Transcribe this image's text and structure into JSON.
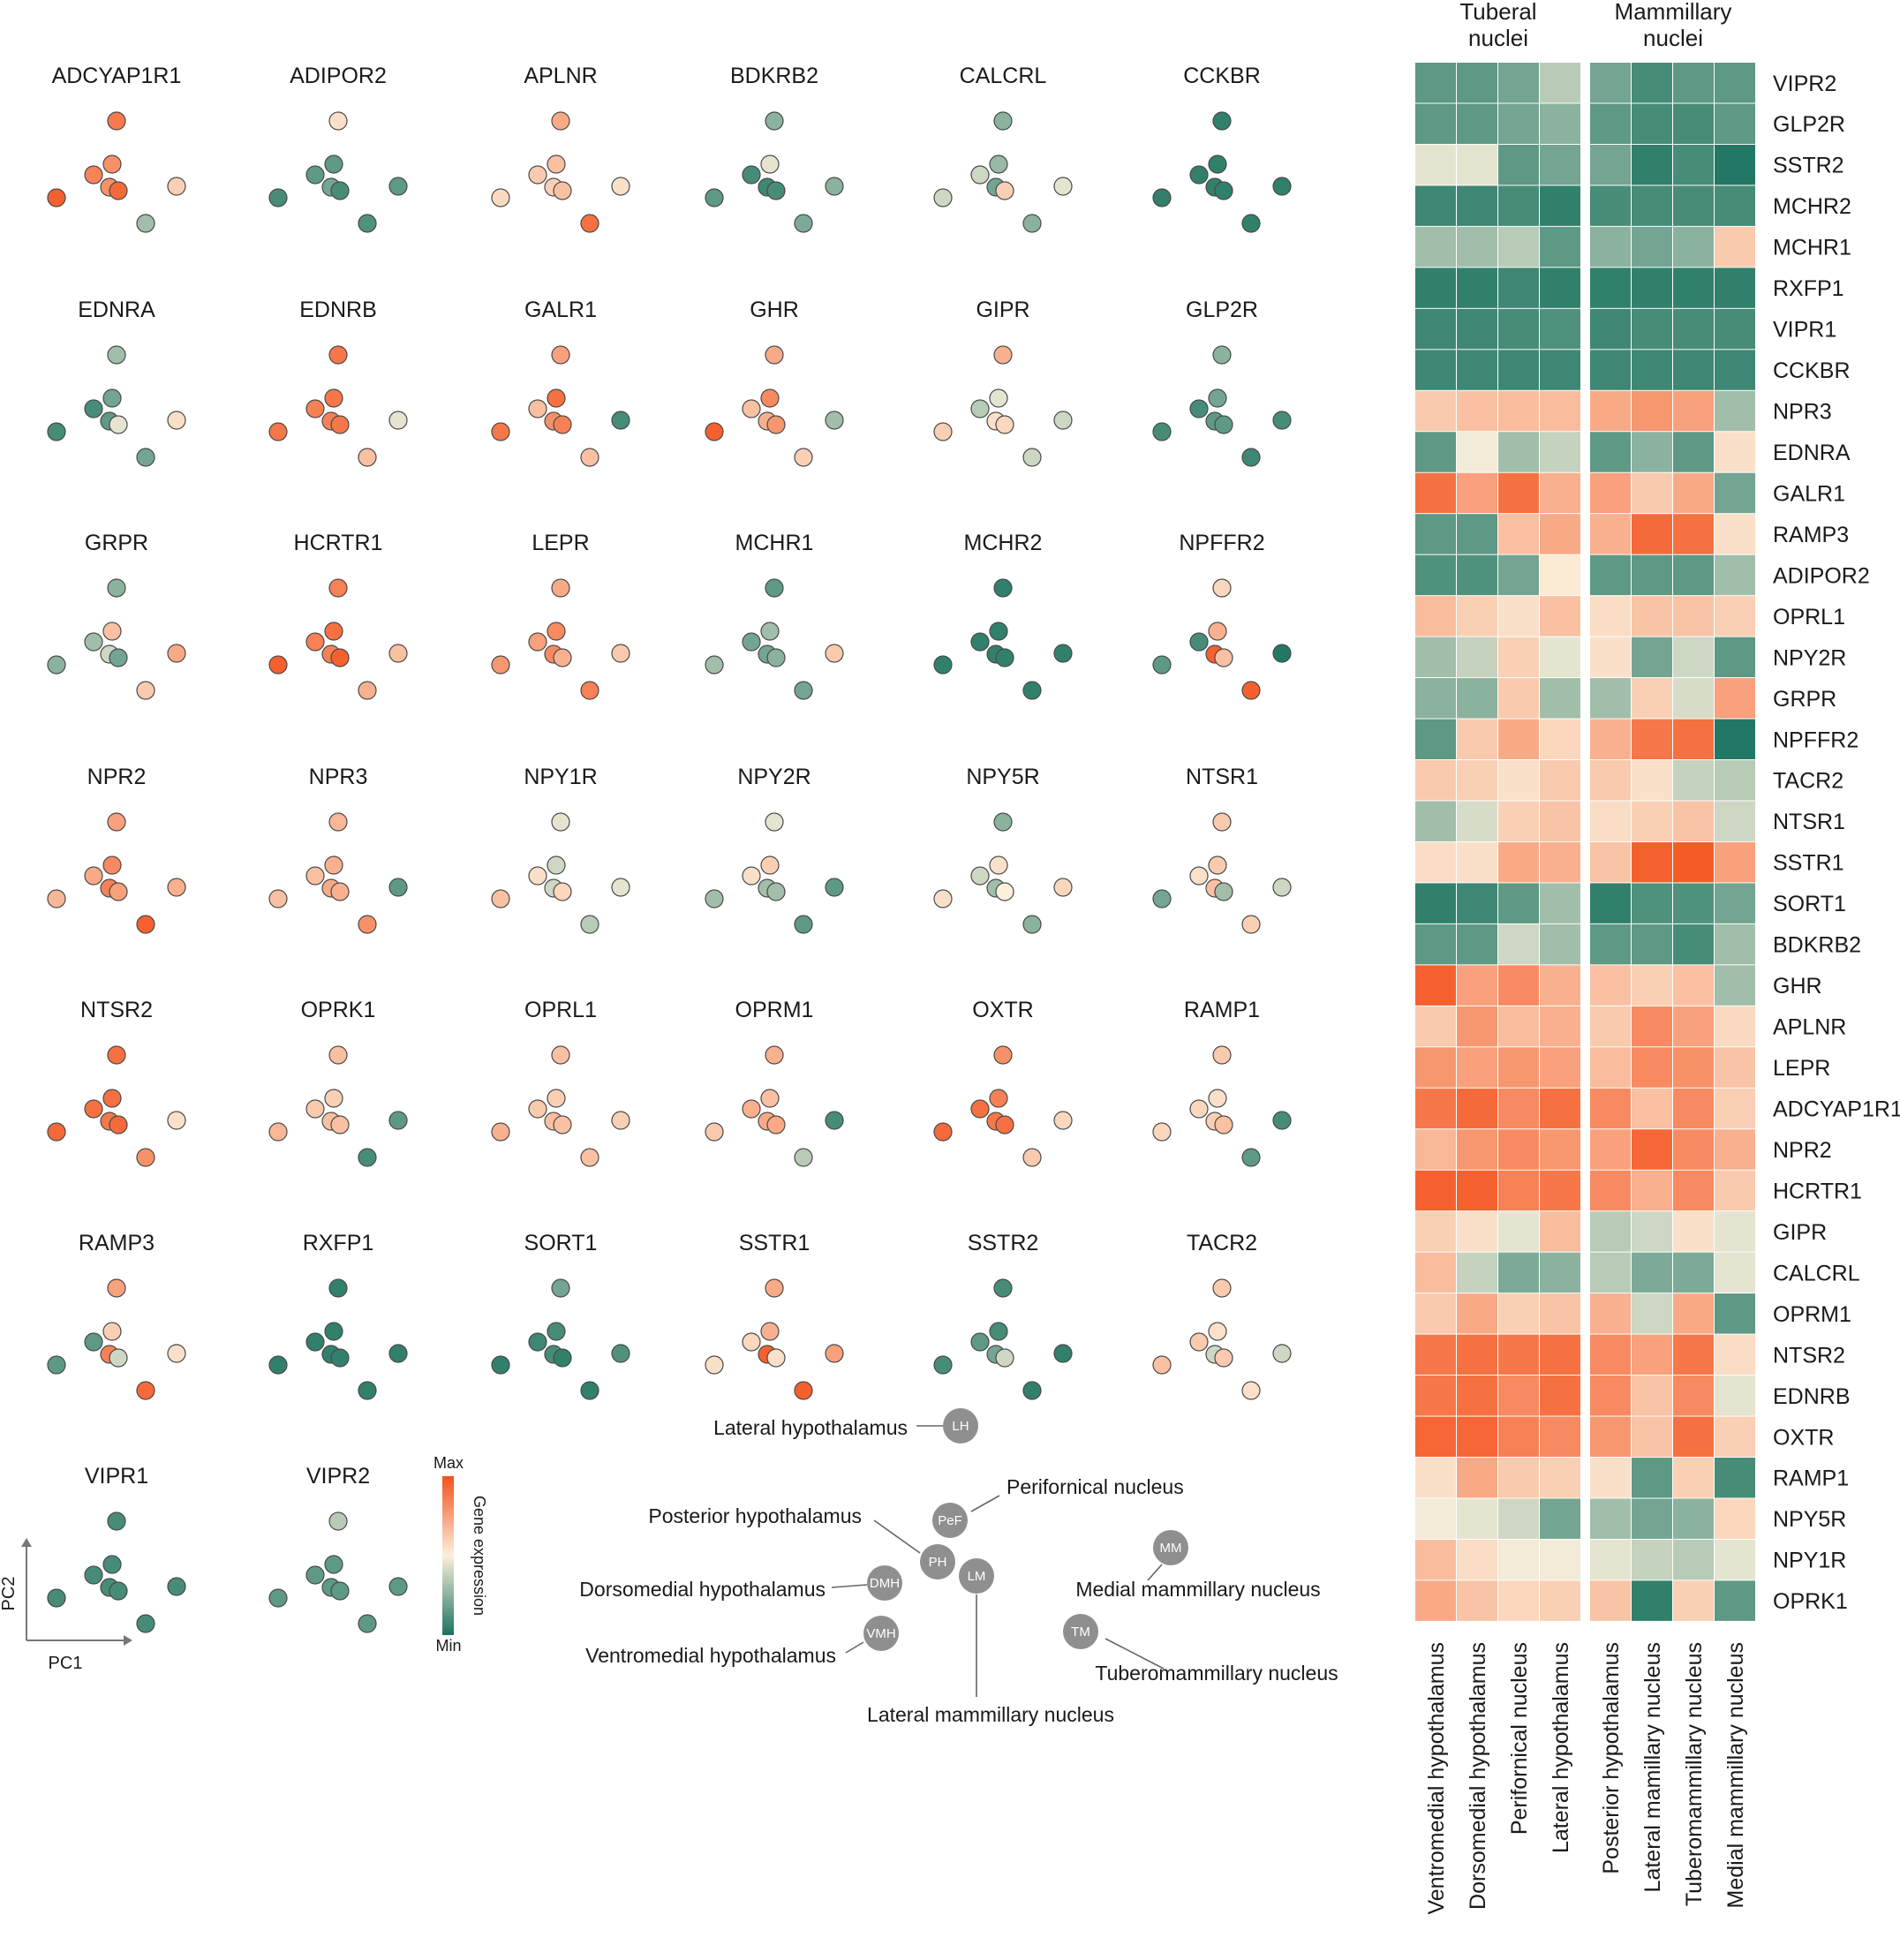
{
  "chart_data": [
    {
      "type": "scatter",
      "description_axes": {
        "xlabel": "PC1",
        "ylabel": "PC2"
      },
      "regions": [
        "LH",
        "PeF",
        "PH",
        "LM",
        "DMH",
        "VMH",
        "MM",
        "TM"
      ],
      "expression_scale": {
        "min_label": "Min",
        "max_label": "Max",
        "title": "Gene expression",
        "range": [
          0,
          1
        ]
      },
      "genes": [
        {
          "name": "ADCYAP1R1",
          "values": [
            0.87,
            0.8,
            0.84,
            0.8,
            0.92,
            0.95,
            0.6,
            0.3
          ]
        },
        {
          "name": "ADIPOR2",
          "values": [
            0.55,
            0.15,
            0.15,
            0.2,
            0.1,
            0.1,
            0.15,
            0.12
          ]
        },
        {
          "name": "APLNR",
          "values": [
            0.72,
            0.65,
            0.62,
            0.6,
            0.65,
            0.57,
            0.55,
            0.9
          ]
        },
        {
          "name": "BDKRB2",
          "values": [
            0.25,
            0.45,
            0.1,
            0.08,
            0.1,
            0.15,
            0.25,
            0.22
          ]
        },
        {
          "name": "CALCRL",
          "values": [
            0.25,
            0.28,
            0.4,
            0.2,
            0.6,
            0.4,
            0.45,
            0.25
          ]
        },
        {
          "name": "CCKBR",
          "values": [
            0.05,
            0.05,
            0.05,
            0.05,
            0.05,
            0.05,
            0.05,
            0.05
          ]
        },
        {
          "name": "EDNRA",
          "values": [
            0.3,
            0.2,
            0.1,
            0.15,
            0.45,
            0.1,
            0.55,
            0.2
          ]
        },
        {
          "name": "EDNRB",
          "values": [
            0.88,
            0.88,
            0.85,
            0.85,
            0.88,
            0.88,
            0.45,
            0.65
          ]
        },
        {
          "name": "GALR1",
          "values": [
            0.75,
            0.9,
            0.65,
            0.8,
            0.85,
            0.88,
            0.1,
            0.65
          ]
        },
        {
          "name": "GHR",
          "values": [
            0.72,
            0.82,
            0.65,
            0.7,
            0.78,
            0.95,
            0.3,
            0.6
          ]
        },
        {
          "name": "GIPR",
          "values": [
            0.7,
            0.45,
            0.35,
            0.55,
            0.58,
            0.6,
            0.4,
            0.4
          ]
        },
        {
          "name": "GLP2R",
          "values": [
            0.25,
            0.2,
            0.1,
            0.15,
            0.15,
            0.1,
            0.1,
            0.08
          ]
        },
        {
          "name": "GRPR",
          "values": [
            0.25,
            0.65,
            0.3,
            0.4,
            0.2,
            0.25,
            0.72,
            0.62
          ]
        },
        {
          "name": "HCRTR1",
          "values": [
            0.85,
            0.9,
            0.85,
            0.85,
            0.95,
            0.95,
            0.65,
            0.7
          ]
        },
        {
          "name": "LEPR",
          "values": [
            0.72,
            0.82,
            0.75,
            0.82,
            0.7,
            0.78,
            0.62,
            0.85
          ]
        },
        {
          "name": "MCHR1",
          "values": [
            0.15,
            0.3,
            0.2,
            0.2,
            0.25,
            0.3,
            0.62,
            0.2
          ]
        },
        {
          "name": "MCHR2",
          "values": [
            0.05,
            0.05,
            0.05,
            0.05,
            0.05,
            0.05,
            0.05,
            0.05
          ]
        },
        {
          "name": "NPFFR2",
          "values": [
            0.58,
            0.7,
            0.1,
            0.95,
            0.65,
            0.15,
            0.02,
            0.95
          ]
        },
        {
          "name": "NPR2",
          "values": [
            0.75,
            0.82,
            0.72,
            0.85,
            0.75,
            0.68,
            0.7,
            0.95
          ]
        },
        {
          "name": "NPR3",
          "values": [
            0.68,
            0.7,
            0.65,
            0.72,
            0.7,
            0.65,
            0.15,
            0.8
          ]
        },
        {
          "name": "NPY1R",
          "values": [
            0.45,
            0.4,
            0.55,
            0.4,
            0.58,
            0.65,
            0.45,
            0.35
          ]
        },
        {
          "name": "NPY2R",
          "values": [
            0.45,
            0.6,
            0.55,
            0.3,
            0.3,
            0.3,
            0.15,
            0.15
          ]
        },
        {
          "name": "NPY5R",
          "values": [
            0.25,
            0.55,
            0.4,
            0.3,
            0.5,
            0.55,
            0.58,
            0.25
          ]
        },
        {
          "name": "NTSR1",
          "values": [
            0.62,
            0.62,
            0.55,
            0.65,
            0.3,
            0.2,
            0.4,
            0.6
          ]
        },
        {
          "name": "NTSR2",
          "values": [
            0.9,
            0.9,
            0.9,
            0.88,
            0.92,
            0.92,
            0.55,
            0.8
          ]
        },
        {
          "name": "OPRK1",
          "values": [
            0.65,
            0.6,
            0.62,
            0.65,
            0.65,
            0.68,
            0.15,
            0.1
          ]
        },
        {
          "name": "OPRL1",
          "values": [
            0.65,
            0.6,
            0.62,
            0.65,
            0.65,
            0.7,
            0.6,
            0.65
          ]
        },
        {
          "name": "OPRM1",
          "values": [
            0.7,
            0.65,
            0.7,
            0.72,
            0.72,
            0.62,
            0.1,
            0.35
          ]
        },
        {
          "name": "OXTR",
          "values": [
            0.8,
            0.85,
            0.9,
            0.88,
            0.9,
            0.92,
            0.58,
            0.62
          ]
        },
        {
          "name": "RAMP1",
          "values": [
            0.62,
            0.55,
            0.58,
            0.6,
            0.65,
            0.58,
            0.1,
            0.15
          ]
        },
        {
          "name": "RAMP3",
          "values": [
            0.75,
            0.6,
            0.15,
            0.85,
            0.4,
            0.15,
            0.55,
            0.92
          ]
        },
        {
          "name": "RXFP1",
          "values": [
            0.05,
            0.05,
            0.05,
            0.05,
            0.05,
            0.05,
            0.05,
            0.05
          ]
        },
        {
          "name": "SORT1",
          "values": [
            0.2,
            0.1,
            0.08,
            0.1,
            0.05,
            0.05,
            0.12,
            0.05
          ]
        },
        {
          "name": "SSTR1",
          "values": [
            0.72,
            0.7,
            0.58,
            0.95,
            0.55,
            0.55,
            0.75,
            0.95
          ]
        },
        {
          "name": "SSTR2",
          "values": [
            0.1,
            0.1,
            0.15,
            0.2,
            0.4,
            0.1,
            0.05,
            0.05
          ]
        },
        {
          "name": "TACR2",
          "values": [
            0.62,
            0.55,
            0.62,
            0.4,
            0.62,
            0.65,
            0.4,
            0.55
          ]
        },
        {
          "name": "VIPR1",
          "values": [
            0.1,
            0.1,
            0.1,
            0.1,
            0.1,
            0.1,
            0.1,
            0.1
          ]
        },
        {
          "name": "VIPR2",
          "values": [
            0.35,
            0.15,
            0.15,
            0.15,
            0.15,
            0.15,
            0.15,
            0.15
          ]
        }
      ]
    },
    {
      "type": "heatmap",
      "groups": [
        {
          "label": "Tuberal\nnuclei",
          "columns": [
            0,
            1,
            2,
            3
          ]
        },
        {
          "label": "Mammillary\nnuclei",
          "columns": [
            4,
            5,
            6,
            7
          ]
        }
      ],
      "columns": [
        "Ventromedial hypothalamus",
        "Dorsomedial hypothalamus",
        "Perifornical nucleus",
        "Lateral hypothalamus",
        "Posterior hypothalamus",
        "Lateral mamillary nucleus",
        "Tuberomammillary nucleus",
        "Medial mammillary nucleus"
      ],
      "rows": [
        "VIPR2",
        "GLP2R",
        "SSTR2",
        "MCHR2",
        "MCHR1",
        "RXFP1",
        "VIPR1",
        "CCKBR",
        "NPR3",
        "EDNRA",
        "GALR1",
        "RAMP3",
        "ADIPOR2",
        "OPRL1",
        "NPY2R",
        "GRPR",
        "NPFFR2",
        "TACR2",
        "NTSR1",
        "SSTR1",
        "SORT1",
        "BDKRB2",
        "GHR",
        "APLNR",
        "LEPR",
        "ADCYAP1R1",
        "NPR2",
        "HCRTR1",
        "GIPR",
        "CALCRL",
        "OPRM1",
        "NTSR2",
        "EDNRB",
        "OXTR",
        "RAMP1",
        "NPY5R",
        "NPY1R",
        "OPRK1"
      ],
      "values": [
        [
          0.15,
          0.15,
          0.2,
          0.35,
          0.2,
          0.1,
          0.15,
          0.15
        ],
        [
          0.15,
          0.15,
          0.2,
          0.25,
          0.15,
          0.1,
          0.1,
          0.15
        ],
        [
          0.45,
          0.45,
          0.15,
          0.2,
          0.2,
          0.05,
          0.1,
          0.02
        ],
        [
          0.08,
          0.08,
          0.1,
          0.05,
          0.1,
          0.1,
          0.1,
          0.1
        ],
        [
          0.3,
          0.3,
          0.35,
          0.15,
          0.25,
          0.2,
          0.25,
          0.62
        ],
        [
          0.05,
          0.05,
          0.08,
          0.05,
          0.05,
          0.05,
          0.05,
          0.05
        ],
        [
          0.08,
          0.08,
          0.1,
          0.12,
          0.08,
          0.1,
          0.1,
          0.1
        ],
        [
          0.08,
          0.08,
          0.08,
          0.08,
          0.08,
          0.08,
          0.08,
          0.08
        ],
        [
          0.62,
          0.65,
          0.66,
          0.66,
          0.72,
          0.78,
          0.75,
          0.3
        ],
        [
          0.15,
          0.48,
          0.3,
          0.38,
          0.15,
          0.25,
          0.15,
          0.55
        ],
        [
          0.9,
          0.75,
          0.9,
          0.7,
          0.75,
          0.62,
          0.72,
          0.2
        ],
        [
          0.15,
          0.15,
          0.65,
          0.72,
          0.7,
          0.92,
          0.9,
          0.55
        ],
        [
          0.12,
          0.12,
          0.2,
          0.52,
          0.15,
          0.15,
          0.15,
          0.3
        ],
        [
          0.66,
          0.6,
          0.55,
          0.65,
          0.56,
          0.64,
          0.64,
          0.6
        ],
        [
          0.3,
          0.38,
          0.6,
          0.45,
          0.55,
          0.2,
          0.4,
          0.15
        ],
        [
          0.25,
          0.25,
          0.62,
          0.3,
          0.3,
          0.6,
          0.42,
          0.75
        ],
        [
          0.15,
          0.62,
          0.72,
          0.58,
          0.7,
          0.88,
          0.9,
          0.02
        ],
        [
          0.62,
          0.6,
          0.55,
          0.62,
          0.62,
          0.55,
          0.38,
          0.35
        ],
        [
          0.3,
          0.42,
          0.6,
          0.64,
          0.56,
          0.6,
          0.64,
          0.4
        ],
        [
          0.56,
          0.55,
          0.72,
          0.7,
          0.64,
          0.95,
          0.97,
          0.75
        ],
        [
          0.05,
          0.08,
          0.15,
          0.3,
          0.05,
          0.12,
          0.12,
          0.2
        ],
        [
          0.15,
          0.15,
          0.4,
          0.3,
          0.15,
          0.15,
          0.1,
          0.3
        ],
        [
          0.95,
          0.75,
          0.82,
          0.7,
          0.65,
          0.6,
          0.65,
          0.3
        ],
        [
          0.62,
          0.78,
          0.66,
          0.7,
          0.62,
          0.82,
          0.75,
          0.57
        ],
        [
          0.78,
          0.75,
          0.78,
          0.75,
          0.66,
          0.82,
          0.8,
          0.64
        ],
        [
          0.88,
          0.92,
          0.82,
          0.9,
          0.82,
          0.65,
          0.82,
          0.6
        ],
        [
          0.68,
          0.78,
          0.82,
          0.78,
          0.75,
          0.93,
          0.82,
          0.7
        ],
        [
          0.95,
          0.95,
          0.85,
          0.88,
          0.82,
          0.7,
          0.82,
          0.62
        ],
        [
          0.6,
          0.55,
          0.45,
          0.66,
          0.35,
          0.4,
          0.55,
          0.45
        ],
        [
          0.66,
          0.38,
          0.22,
          0.25,
          0.35,
          0.22,
          0.22,
          0.45
        ],
        [
          0.62,
          0.72,
          0.6,
          0.64,
          0.7,
          0.4,
          0.72,
          0.15
        ],
        [
          0.88,
          0.9,
          0.88,
          0.9,
          0.82,
          0.75,
          0.88,
          0.56
        ],
        [
          0.88,
          0.9,
          0.82,
          0.9,
          0.82,
          0.64,
          0.82,
          0.45
        ],
        [
          0.93,
          0.93,
          0.85,
          0.82,
          0.78,
          0.64,
          0.9,
          0.6
        ],
        [
          0.55,
          0.72,
          0.62,
          0.6,
          0.55,
          0.15,
          0.6,
          0.1
        ],
        [
          0.48,
          0.45,
          0.4,
          0.2,
          0.3,
          0.2,
          0.25,
          0.58
        ],
        [
          0.66,
          0.56,
          0.48,
          0.48,
          0.45,
          0.38,
          0.35,
          0.45
        ],
        [
          0.72,
          0.64,
          0.58,
          0.6,
          0.64,
          0.05,
          0.6,
          0.15
        ]
      ]
    }
  ],
  "region_map": {
    "LH": "Lateral hypothalamus",
    "PeF": "Perifornical nucleus",
    "PH": "Posterior hypothalamus",
    "DMH": "Dorsomedial hypothalamus",
    "LM": "Lateral mammillary nucleus",
    "VMH": "Ventromedial hypothalamus",
    "MM": "Medial mammillary nucleus",
    "TM": "Tuberomammillary nucleus"
  },
  "colors": {
    "min": "#1a7360",
    "mid": "#fbf0dc",
    "max": "#f4511b",
    "node": "#8f8f8f",
    "line": "#666666"
  }
}
